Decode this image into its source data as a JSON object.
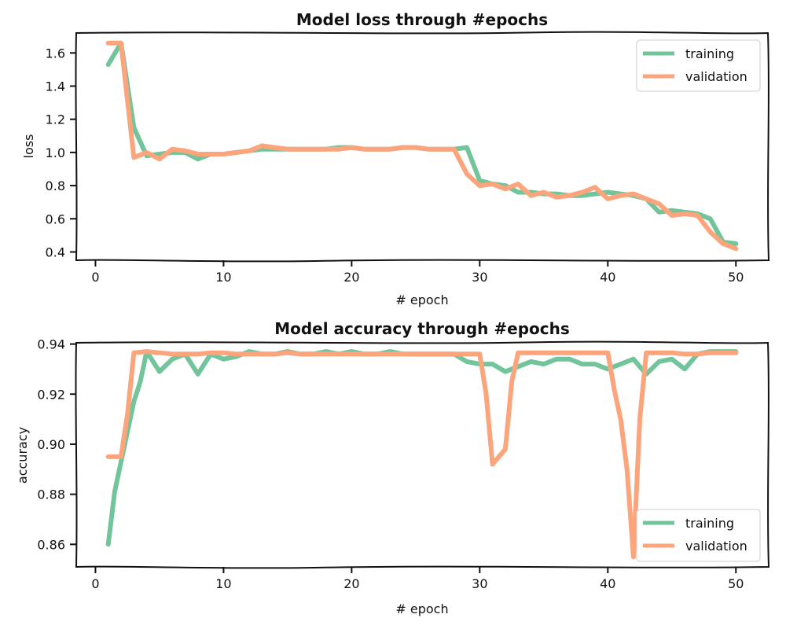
{
  "colors": {
    "training": "#72c49b",
    "validation": "#fca57c"
  },
  "chart_data": [
    {
      "type": "line",
      "title": "Model loss through #epochs",
      "xlabel": "# epoch",
      "ylabel": "loss",
      "xlim": [
        -1.5,
        52.5
      ],
      "ylim": [
        0.35,
        1.72
      ],
      "xticks": [
        0,
        10,
        20,
        30,
        40,
        50
      ],
      "yticks": [
        0.4,
        0.6,
        0.8,
        1.0,
        1.2,
        1.4,
        1.6
      ],
      "ytick_labels": [
        "0.4",
        "0.6",
        "0.8",
        "1.0",
        "1.2",
        "1.4",
        "1.6"
      ],
      "legend_position": "top-right",
      "series": [
        {
          "name": "training",
          "color_key": "training",
          "x": [
            1,
            2,
            3,
            4,
            5,
            6,
            7,
            8,
            9,
            10,
            11,
            12,
            13,
            14,
            15,
            16,
            17,
            18,
            19,
            20,
            21,
            22,
            23,
            24,
            25,
            26,
            27,
            28,
            29,
            30,
            31,
            32,
            33,
            34,
            35,
            36,
            37,
            38,
            39,
            40,
            41,
            42,
            43,
            44,
            45,
            46,
            47,
            48,
            49,
            50
          ],
          "values": [
            1.53,
            1.66,
            1.15,
            0.98,
            0.99,
            1.0,
            1.0,
            0.96,
            0.99,
            0.99,
            1.0,
            1.01,
            1.02,
            1.02,
            1.02,
            1.02,
            1.02,
            1.02,
            1.03,
            1.03,
            1.02,
            1.02,
            1.02,
            1.03,
            1.03,
            1.02,
            1.02,
            1.02,
            1.03,
            0.83,
            0.81,
            0.8,
            0.76,
            0.76,
            0.75,
            0.75,
            0.74,
            0.74,
            0.75,
            0.76,
            0.75,
            0.74,
            0.72,
            0.64,
            0.65,
            0.64,
            0.63,
            0.6,
            0.46,
            0.45
          ]
        },
        {
          "name": "validation",
          "color_key": "validation",
          "x": [
            1,
            2,
            3,
            4,
            5,
            6,
            7,
            8,
            9,
            10,
            11,
            12,
            13,
            14,
            15,
            16,
            17,
            18,
            19,
            20,
            21,
            22,
            23,
            24,
            25,
            26,
            27,
            28,
            29,
            30,
            31,
            32,
            33,
            34,
            35,
            36,
            37,
            38,
            39,
            40,
            41,
            42,
            43,
            44,
            45,
            46,
            47,
            48,
            49,
            50
          ],
          "values": [
            1.66,
            1.66,
            0.97,
            1.0,
            0.96,
            1.02,
            1.01,
            0.99,
            0.99,
            0.99,
            1.0,
            1.01,
            1.04,
            1.03,
            1.02,
            1.02,
            1.02,
            1.02,
            1.02,
            1.03,
            1.02,
            1.02,
            1.02,
            1.03,
            1.03,
            1.02,
            1.02,
            1.02,
            0.87,
            0.8,
            0.81,
            0.78,
            0.81,
            0.74,
            0.76,
            0.73,
            0.74,
            0.76,
            0.79,
            0.72,
            0.74,
            0.75,
            0.72,
            0.69,
            0.62,
            0.63,
            0.62,
            0.52,
            0.45,
            0.42
          ]
        }
      ]
    },
    {
      "type": "line",
      "title": "Model accuracy through #epochs",
      "xlabel": "# epoch",
      "ylabel": "accuracy",
      "xlim": [
        -1.5,
        52.5
      ],
      "ylim": [
        0.851,
        0.9405
      ],
      "xticks": [
        0,
        10,
        20,
        30,
        40,
        50
      ],
      "yticks": [
        0.86,
        0.88,
        0.9,
        0.92,
        0.94
      ],
      "ytick_labels": [
        "0.86",
        "0.88",
        "0.90",
        "0.92",
        "0.94"
      ],
      "legend_position": "bottom-right",
      "series": [
        {
          "name": "training",
          "color_key": "training",
          "x": [
            1,
            1.5,
            2,
            3,
            3.5,
            4,
            5,
            6,
            7,
            8,
            9,
            10,
            11,
            12,
            13,
            14,
            15,
            16,
            17,
            18,
            19,
            20,
            21,
            22,
            23,
            24,
            25,
            26,
            27,
            28,
            29,
            30,
            31,
            32,
            33,
            34,
            35,
            36,
            37,
            38,
            39,
            40,
            41,
            42,
            43,
            44,
            45,
            46,
            47,
            48,
            49,
            50
          ],
          "values": [
            0.86,
            0.881,
            0.893,
            0.917,
            0.925,
            0.937,
            0.929,
            0.934,
            0.936,
            0.928,
            0.936,
            0.934,
            0.935,
            0.937,
            0.936,
            0.936,
            0.937,
            0.936,
            0.936,
            0.937,
            0.936,
            0.937,
            0.936,
            0.936,
            0.937,
            0.936,
            0.936,
            0.936,
            0.936,
            0.936,
            0.933,
            0.932,
            0.932,
            0.929,
            0.931,
            0.933,
            0.932,
            0.934,
            0.934,
            0.932,
            0.932,
            0.93,
            0.932,
            0.934,
            0.928,
            0.933,
            0.934,
            0.93,
            0.936,
            0.937,
            0.937,
            0.937
          ]
        },
        {
          "name": "validation",
          "color_key": "validation",
          "x": [
            1,
            2,
            2.2,
            2.5,
            3,
            4,
            5,
            6,
            7,
            8,
            9,
            10,
            11,
            12,
            13,
            14,
            15,
            16,
            17,
            18,
            19,
            20,
            21,
            22,
            23,
            24,
            25,
            26,
            27,
            28,
            29,
            30,
            30.5,
            31,
            32,
            32.5,
            33,
            34,
            35,
            36,
            37,
            38,
            39,
            40,
            40.5,
            41,
            41.5,
            42,
            42.5,
            43,
            44,
            45,
            46,
            47,
            48,
            49,
            50
          ],
          "values": [
            0.895,
            0.895,
            0.902,
            0.912,
            0.9365,
            0.937,
            0.9365,
            0.936,
            0.936,
            0.936,
            0.9365,
            0.9365,
            0.936,
            0.936,
            0.936,
            0.936,
            0.9365,
            0.936,
            0.936,
            0.936,
            0.936,
            0.936,
            0.936,
            0.936,
            0.936,
            0.936,
            0.936,
            0.936,
            0.936,
            0.936,
            0.936,
            0.936,
            0.92,
            0.892,
            0.898,
            0.925,
            0.9365,
            0.9365,
            0.9365,
            0.9365,
            0.9365,
            0.9365,
            0.9365,
            0.9365,
            0.922,
            0.91,
            0.89,
            0.855,
            0.91,
            0.9365,
            0.9365,
            0.9365,
            0.936,
            0.936,
            0.9365,
            0.9365,
            0.9365
          ]
        }
      ]
    }
  ]
}
